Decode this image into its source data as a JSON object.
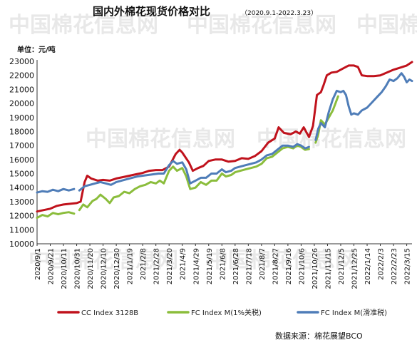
{
  "chart_data": {
    "type": "line",
    "title": "国内外棉花现货价格对比",
    "subtitle": "（2020.9.1-2022.3.23）",
    "unit_label": "单位：元/吨",
    "source": "数据来源：棉花展望BCO",
    "watermark": "中国棉花信息网",
    "ylim": [
      10000,
      23000
    ],
    "yticks": [
      10000,
      11000,
      12000,
      13000,
      14000,
      15000,
      16000,
      17000,
      18000,
      19000,
      20000,
      21000,
      22000,
      23000
    ],
    "x_categories": [
      "2020/9/1",
      "2020/9/21",
      "2020/10/11",
      "2020/10/31",
      "2020/11/20",
      "2020/12/10",
      "2020/12/30",
      "2021/1/19",
      "2021/2/8",
      "2021/2/28",
      "2021/3/20",
      "2021/4/9",
      "2021/4/29",
      "2021/5/19",
      "2021/6/8",
      "2021/6/28",
      "2021/7/18",
      "2021/8/7",
      "2021/8/27",
      "2021/9/16",
      "2021/10/6",
      "2021/10/26",
      "2021/11/15",
      "2021/12/5",
      "2021/12/25",
      "2022/1/14",
      "2022/2/3",
      "2022/2/23",
      "2022/3/15"
    ],
    "x_range": [
      0,
      28.4
    ],
    "series": [
      {
        "name": "CC Index 3128B",
        "color": "#c0121c",
        "segments": [
          [
            [
              0,
              12300
            ],
            [
              0.5,
              12400
            ],
            [
              1,
              12500
            ],
            [
              1.5,
              12700
            ],
            [
              2,
              12800
            ],
            [
              2.5,
              12850
            ],
            [
              3,
              12900
            ],
            [
              3.3,
              13000
            ],
            [
              3.6,
              14400
            ],
            [
              3.8,
              14850
            ],
            [
              4.1,
              14650
            ],
            [
              4.6,
              14500
            ],
            [
              5,
              14550
            ],
            [
              5.5,
              14500
            ],
            [
              6,
              14650
            ],
            [
              6.5,
              14750
            ],
            [
              7,
              14850
            ],
            [
              7.5,
              14950
            ],
            [
              8,
              15050
            ],
            [
              8.5,
              15200
            ],
            [
              9,
              15250
            ],
            [
              9.5,
              15250
            ],
            [
              10,
              15500
            ],
            [
              10.5,
              16400
            ],
            [
              10.8,
              16700
            ],
            [
              11,
              16500
            ],
            [
              11.5,
              15800
            ],
            [
              11.8,
              15200
            ],
            [
              12.2,
              15400
            ],
            [
              12.6,
              15550
            ],
            [
              13,
              15900
            ],
            [
              13.5,
              16000
            ],
            [
              14,
              16000
            ],
            [
              14.5,
              15850
            ],
            [
              15,
              15900
            ],
            [
              15.5,
              16100
            ],
            [
              16,
              16050
            ],
            [
              16.5,
              16250
            ],
            [
              17,
              16600
            ],
            [
              17.5,
              17200
            ],
            [
              18,
              17500
            ],
            [
              18.3,
              18300
            ],
            [
              18.7,
              17900
            ],
            [
              19.2,
              17800
            ],
            [
              19.6,
              18000
            ],
            [
              19.9,
              17850
            ],
            [
              20.2,
              18300
            ],
            [
              20.6,
              17600
            ],
            [
              20.9,
              18400
            ],
            [
              21.2,
              20600
            ],
            [
              21.5,
              20800
            ],
            [
              21.7,
              21300
            ],
            [
              21.95,
              22000
            ],
            [
              22.3,
              22200
            ],
            [
              22.7,
              22250
            ],
            [
              23.2,
              22500
            ],
            [
              23.6,
              22700
            ],
            [
              24,
              22700
            ],
            [
              24.3,
              22600
            ],
            [
              24.6,
              22000
            ],
            [
              25,
              21950
            ],
            [
              25.5,
              21950
            ],
            [
              26,
              22000
            ],
            [
              26.5,
              22200
            ],
            [
              27,
              22400
            ],
            [
              27.5,
              22550
            ],
            [
              28,
              22700
            ],
            [
              28.4,
              22950
            ]
          ]
        ]
      },
      {
        "name": "FC Index M(1%关税)",
        "color": "#8bbd3c",
        "segments": [
          [
            [
              0,
              11850
            ],
            [
              0.4,
              12050
            ],
            [
              0.8,
              11950
            ],
            [
              1.2,
              12200
            ],
            [
              1.6,
              12100
            ],
            [
              2,
              12200
            ],
            [
              2.4,
              12250
            ],
            [
              2.8,
              12150
            ]
          ],
          [
            [
              3.2,
              12400
            ],
            [
              3.5,
              12800
            ],
            [
              3.8,
              12600
            ],
            [
              4.2,
              13050
            ],
            [
              4.5,
              13200
            ],
            [
              4.8,
              13500
            ],
            [
              5.2,
              13200
            ],
            [
              5.5,
              12900
            ],
            [
              5.8,
              13300
            ],
            [
              6.2,
              13400
            ],
            [
              6.6,
              13700
            ],
            [
              7,
              13600
            ],
            [
              7.4,
              13900
            ],
            [
              7.8,
              14100
            ],
            [
              8.2,
              14200
            ],
            [
              8.6,
              14400
            ],
            [
              9,
              14300
            ],
            [
              9.3,
              14500
            ],
            [
              9.6,
              14300
            ],
            [
              10,
              15200
            ],
            [
              10.3,
              15500
            ],
            [
              10.6,
              15200
            ],
            [
              11,
              15400
            ],
            [
              11.3,
              14800
            ],
            [
              11.6,
              13900
            ],
            [
              12,
              14000
            ],
            [
              12.4,
              14400
            ],
            [
              12.8,
              14200
            ],
            [
              13.2,
              14500
            ],
            [
              13.6,
              14500
            ],
            [
              14,
              15000
            ],
            [
              14.3,
              14800
            ],
            [
              14.7,
              14900
            ],
            [
              15,
              15100
            ],
            [
              15.4,
              15200
            ],
            [
              15.8,
              15300
            ],
            [
              16.2,
              15400
            ],
            [
              16.6,
              15500
            ],
            [
              17,
              15700
            ],
            [
              17.4,
              16100
            ],
            [
              17.8,
              16200
            ],
            [
              18.2,
              16500
            ],
            [
              18.6,
              16800
            ],
            [
              19,
              16900
            ],
            [
              19.4,
              16800
            ],
            [
              19.7,
              17000
            ],
            [
              20,
              16900
            ],
            [
              20.3,
              16700
            ],
            [
              20.6,
              16750
            ]
          ],
          [
            [
              21.1,
              17200
            ],
            [
              21.3,
              17800
            ],
            [
              21.5,
              18800
            ],
            [
              21.8,
              18500
            ],
            [
              22.1,
              19000
            ],
            [
              22.4,
              19500
            ],
            [
              22.6,
              20000
            ],
            [
              22.8,
              20500
            ]
          ]
        ]
      },
      {
        "name": "FC Index M(滑准税)",
        "color": "#4f7db8",
        "segments": [
          [
            [
              0,
              13650
            ],
            [
              0.4,
              13750
            ],
            [
              0.8,
              13700
            ],
            [
              1.2,
              13850
            ],
            [
              1.6,
              13750
            ],
            [
              2,
              13900
            ],
            [
              2.4,
              13800
            ],
            [
              2.8,
              13900
            ]
          ],
          [
            [
              3.2,
              13800
            ],
            [
              3.6,
              14100
            ],
            [
              4,
              14200
            ],
            [
              4.4,
              14300
            ],
            [
              4.8,
              14400
            ],
            [
              5.2,
              14300
            ],
            [
              5.6,
              14200
            ],
            [
              6,
              14400
            ],
            [
              6.4,
              14500
            ],
            [
              6.8,
              14600
            ],
            [
              7.2,
              14700
            ],
            [
              7.6,
              14800
            ],
            [
              8,
              14850
            ],
            [
              8.4,
              14900
            ],
            [
              8.8,
              14950
            ],
            [
              9.2,
              15000
            ],
            [
              9.6,
              15000
            ],
            [
              10,
              15600
            ],
            [
              10.3,
              15900
            ],
            [
              10.6,
              15700
            ],
            [
              11,
              15800
            ],
            [
              11.3,
              15300
            ],
            [
              11.6,
              14300
            ],
            [
              12,
              14500
            ],
            [
              12.4,
              14700
            ],
            [
              12.8,
              14700
            ],
            [
              13.2,
              15000
            ],
            [
              13.6,
              15000
            ],
            [
              14,
              15300
            ],
            [
              14.3,
              15100
            ],
            [
              14.7,
              15200
            ],
            [
              15,
              15400
            ],
            [
              15.4,
              15500
            ],
            [
              15.8,
              15600
            ],
            [
              16.2,
              15700
            ],
            [
              16.6,
              15800
            ],
            [
              17,
              16000
            ],
            [
              17.4,
              16300
            ],
            [
              17.8,
              16400
            ],
            [
              18.2,
              16700
            ],
            [
              18.6,
              17000
            ],
            [
              19,
              17000
            ],
            [
              19.4,
              16900
            ],
            [
              19.7,
              17100
            ],
            [
              20,
              17000
            ],
            [
              20.3,
              16800
            ],
            [
              20.6,
              16900
            ]
          ],
          [
            [
              21.1,
              17400
            ],
            [
              21.3,
              18200
            ],
            [
              21.5,
              18600
            ],
            [
              21.8,
              18300
            ],
            [
              22.1,
              19400
            ],
            [
              22.4,
              20300
            ],
            [
              22.7,
              20900
            ],
            [
              23,
              20800
            ],
            [
              23.2,
              20900
            ],
            [
              23.4,
              20600
            ],
            [
              23.6,
              19800
            ],
            [
              23.8,
              19200
            ],
            [
              24,
              19300
            ],
            [
              24.3,
              19200
            ],
            [
              24.6,
              19500
            ],
            [
              25,
              19700
            ],
            [
              25.4,
              20100
            ],
            [
              25.8,
              20500
            ],
            [
              26.1,
              20800
            ],
            [
              26.4,
              21200
            ],
            [
              26.7,
              21700
            ],
            [
              27,
              21600
            ],
            [
              27.3,
              21800
            ],
            [
              27.6,
              22150
            ],
            [
              27.8,
              21900
            ],
            [
              28,
              21500
            ],
            [
              28.2,
              21700
            ],
            [
              28.4,
              21600
            ]
          ]
        ]
      }
    ],
    "grid": false,
    "legend_position": "bottom"
  }
}
